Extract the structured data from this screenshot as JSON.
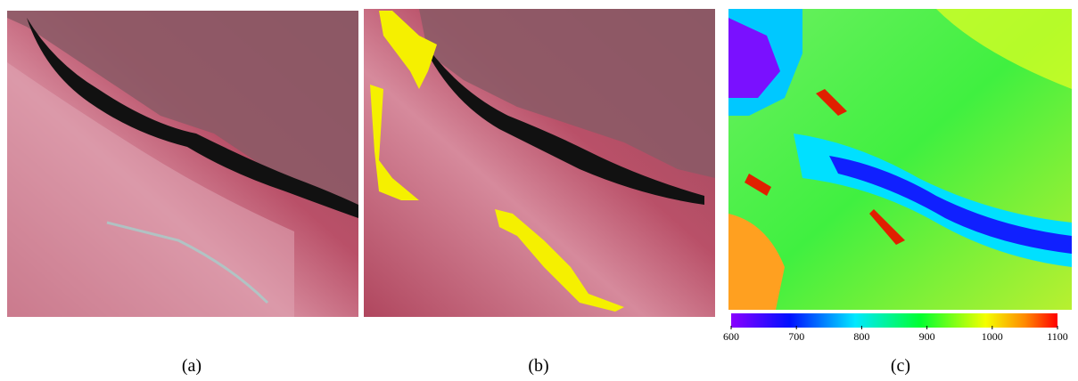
{
  "panels": [
    {
      "label": "(a)"
    },
    {
      "label": "(b)"
    },
    {
      "label": "(c)"
    }
  ],
  "colorbar": {
    "lim": [
      600,
      1100
    ],
    "ticks": [
      600,
      700,
      800,
      900,
      1000,
      1100
    ]
  }
}
